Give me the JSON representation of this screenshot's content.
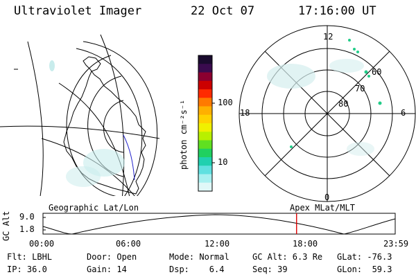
{
  "header": {
    "instrument": "Ultraviolet Imager",
    "date": "22 Oct 07",
    "time": "17:16:00 UT"
  },
  "colorbar": {
    "unit_label": "photon cm⁻²s⁻¹",
    "ticks": [
      {
        "label": "100",
        "value": 100
      },
      {
        "label": "10",
        "value": 10
      }
    ],
    "colors": [
      "#1a0b2e",
      "#3a0b4e",
      "#8b0030",
      "#cc0000",
      "#ff2a00",
      "#ff7a00",
      "#ffb000",
      "#ffd200",
      "#f0f000",
      "#b8f000",
      "#60e020",
      "#20d060",
      "#20d0b0",
      "#60e0e0",
      "#a8f0f0",
      "#e0f8f8"
    ]
  },
  "polar_plot": {
    "labels": {
      "top": "12",
      "bottom": "0",
      "left": "18",
      "right": "6",
      "ring_60": "60",
      "ring_70": "70",
      "ring_80": "80"
    }
  },
  "timeline": {
    "y_axis_title": "GC Alt",
    "y_ticks": [
      "9.0",
      "1.8"
    ],
    "left_title": "Geographic Lat/Lon",
    "right_title": "Apex MLat/MLT",
    "x_ticks": [
      "00:00",
      "06:00",
      "12:00",
      "18:00",
      "23:59"
    ],
    "marker_time": "17:16",
    "marker_color": "#dd0000"
  },
  "footer": {
    "row1": {
      "flt": "Flt: LBHL",
      "door": "Door: Open",
      "mode": "Mode: Normal",
      "gcalt": "GC Alt: 6.3 Re",
      "glat": "GLat: -76.3"
    },
    "row2": {
      "ip": "IP: 36.0",
      "gain": "Gain: 14",
      "dsp": "Dsp:    6.4",
      "seq": "Seq: 39",
      "glon": "GLon:  59.3"
    }
  }
}
